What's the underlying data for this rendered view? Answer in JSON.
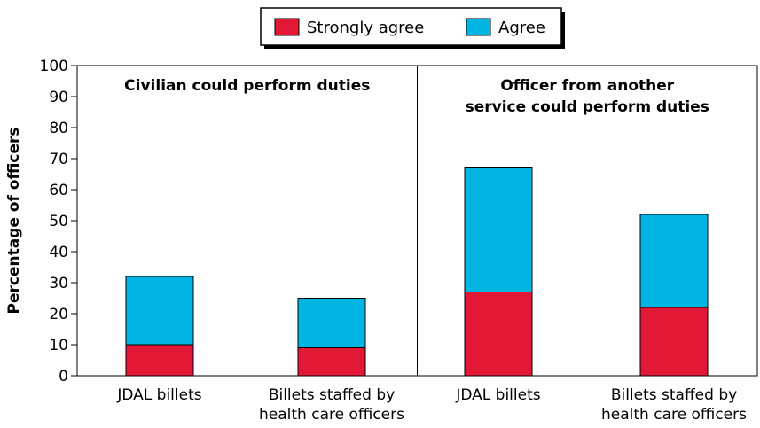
{
  "chart_data": {
    "type": "bar",
    "stacked": true,
    "ylabel": "Percentage of officers",
    "ylim": [
      0,
      100
    ],
    "yticks": [
      0,
      10,
      20,
      30,
      40,
      50,
      60,
      70,
      80,
      90,
      100
    ],
    "legend": {
      "placement": "top-center",
      "items": [
        {
          "label": "Strongly agree",
          "color": "#e31837"
        },
        {
          "label": "Agree",
          "color": "#00b5e2"
        }
      ]
    },
    "panels": [
      {
        "title": [
          "Civilian could perform duties"
        ],
        "categories": [
          [
            "JDAL billets"
          ],
          [
            "Billets staffed by",
            "health care officers"
          ]
        ]
      },
      {
        "title": [
          "Officer from another",
          "service could perform duties"
        ],
        "categories": [
          [
            "JDAL billets"
          ],
          [
            "Billets staffed by",
            "health care officers"
          ]
        ]
      }
    ],
    "series": [
      {
        "name": "Strongly agree",
        "color": "#e31837",
        "values": [
          10,
          9,
          27,
          22
        ]
      },
      {
        "name": "Agree",
        "color": "#00b5e2",
        "values": [
          22,
          16,
          40,
          30
        ]
      }
    ]
  }
}
